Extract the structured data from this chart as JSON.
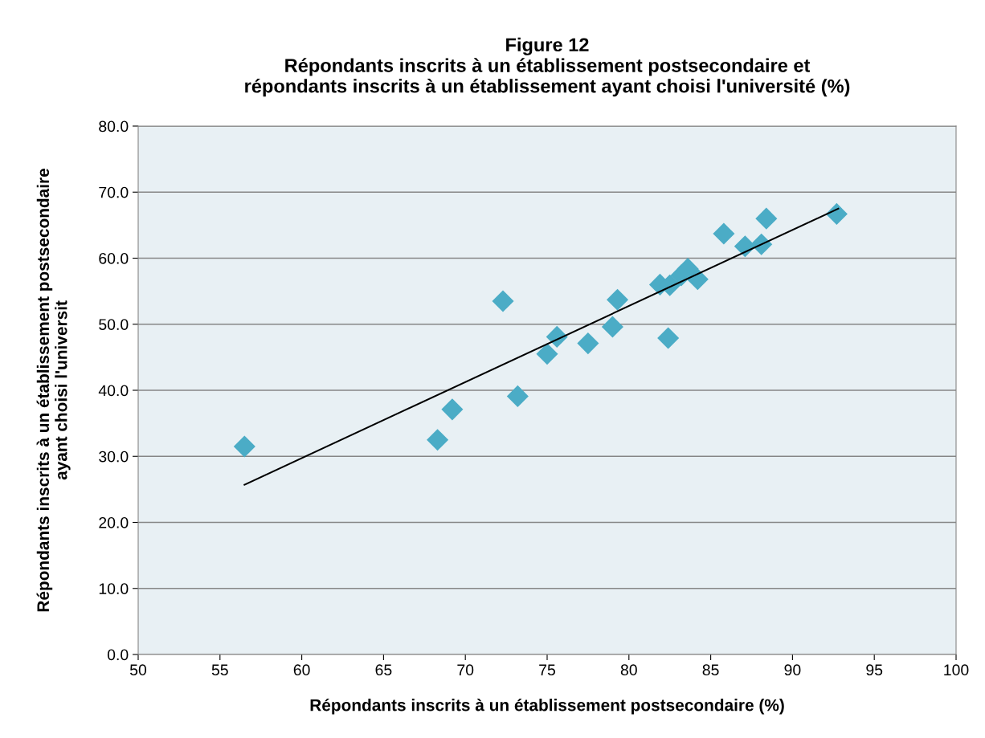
{
  "chart_data": {
    "type": "scatter",
    "title": "Figure 12\nRépondants inscrits à un établissement postsecondaire et\nrépondants inscrits à un établissement ayant choisi l'université (%)",
    "xlabel": "Répondants inscrits à un établissement postsecondaire (%)",
    "ylabel": "Répondants inscrits à un établissement postsecondaire\nayant choisi l'universit",
    "series": [
      {
        "color": "#4bacc6",
        "marker": "diamond",
        "x": [
          56.5,
          68.3,
          69.2,
          72.3,
          73.2,
          75.0,
          75.6,
          77.5,
          79.0,
          79.3,
          81.9,
          82.4,
          82.5,
          83.2,
          83.6,
          84.2,
          85.8,
          87.1,
          88.1,
          88.4,
          92.7
        ],
        "values": [
          31.5,
          32.5,
          37.1,
          53.5,
          39.1,
          45.5,
          48.1,
          47.1,
          49.6,
          53.7,
          56.0,
          47.9,
          55.9,
          57.4,
          58.4,
          56.8,
          63.7,
          61.8,
          62.1,
          66.0,
          66.7
        ]
      },
      {
        "color": "#000000",
        "type": "line",
        "marker": "none",
        "x": [
          56.5,
          92.8
        ],
        "values": [
          25.7,
          67.5
        ]
      }
    ],
    "xlim": [
      50,
      100
    ],
    "xticks": [
      50,
      55,
      60,
      65,
      70,
      75,
      80,
      85,
      90,
      95,
      100
    ],
    "ylim": [
      0,
      80
    ],
    "yticks": [
      {
        "value": 0,
        "label": "0.0"
      },
      {
        "value": 10,
        "label": "10.0"
      },
      {
        "value": 20,
        "label": "20.0"
      },
      {
        "value": 30,
        "label": "30.0"
      },
      {
        "value": 40,
        "label": "40.0"
      },
      {
        "value": 50,
        "label": "50.0"
      },
      {
        "value": 60,
        "label": "60.0"
      },
      {
        "value": 70,
        "label": "70.0"
      },
      {
        "value": 80,
        "label": "80.0"
      }
    ],
    "grid": "y",
    "legend": false
  }
}
